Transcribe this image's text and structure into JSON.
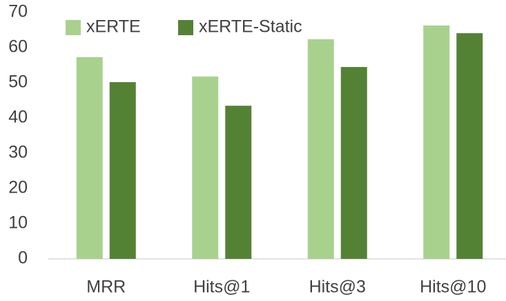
{
  "chart_data": {
    "type": "bar",
    "categories": [
      "MRR",
      "Hits@1",
      "Hits@3",
      "Hits@10"
    ],
    "series": [
      {
        "name": "xERTE",
        "color": "#a9d18e",
        "values": [
          57.3,
          51.8,
          62.4,
          66.3
        ]
      },
      {
        "name": "xERTE-Static",
        "color": "#548235",
        "values": [
          50.2,
          43.5,
          54.5,
          64.1
        ]
      }
    ],
    "ylim": [
      0,
      70
    ],
    "yticks": [
      0,
      10,
      20,
      30,
      40,
      50,
      60,
      70
    ],
    "grid": false,
    "legend": "top-left"
  }
}
